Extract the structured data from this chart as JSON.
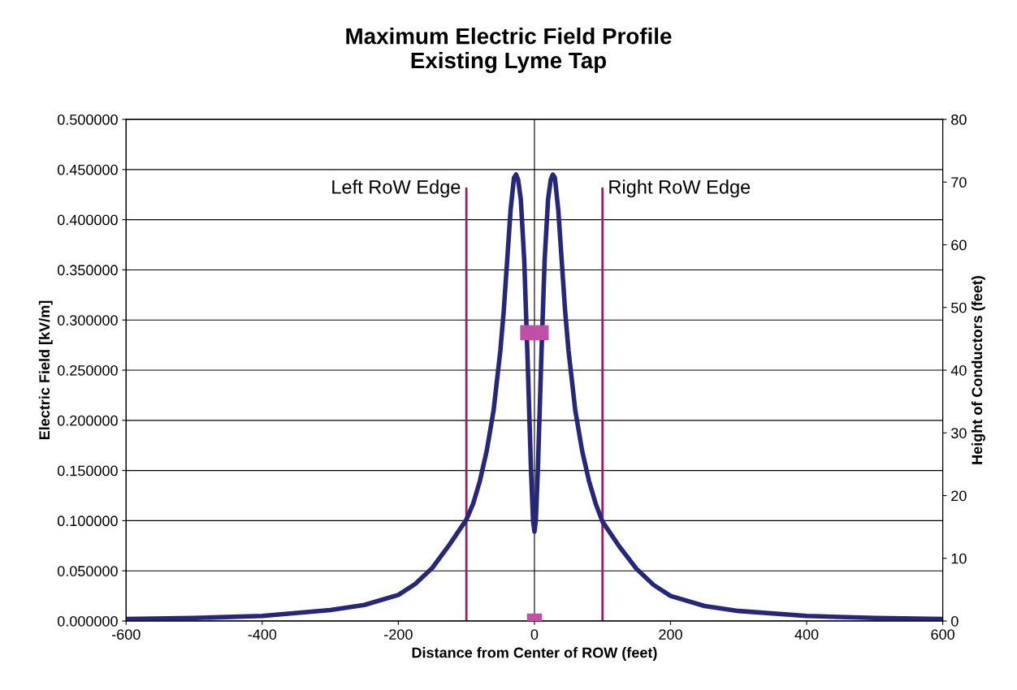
{
  "chart_data": {
    "type": "line",
    "title": "Maximum Electric Field Profile\nExisting Lyme Tap",
    "xlabel": "Distance from Center of ROW (feet)",
    "ylabel": "Electric Field [kV/m]",
    "y2label": "Height of Conductors (feet)",
    "series": [
      {
        "color": "#27277a",
        "x": [
          -600,
          -500,
          -400,
          -300,
          -250,
          -200,
          -175,
          -150,
          -125,
          -100,
          -90,
          -80,
          -70,
          -60,
          -50,
          -45,
          -40,
          -35,
          -30,
          -27,
          -24,
          -20,
          -15,
          -10,
          -5,
          -2,
          0,
          2,
          5,
          10,
          15,
          20,
          24,
          27,
          30,
          35,
          40,
          45,
          50,
          60,
          70,
          80,
          90,
          100,
          125,
          150,
          175,
          200,
          250,
          300,
          400,
          500,
          600
        ],
        "values": [
          0.002,
          0.003,
          0.005,
          0.011,
          0.016,
          0.026,
          0.037,
          0.053,
          0.076,
          0.101,
          0.117,
          0.14,
          0.17,
          0.21,
          0.27,
          0.31,
          0.36,
          0.41,
          0.442,
          0.445,
          0.44,
          0.42,
          0.36,
          0.26,
          0.15,
          0.1,
          0.089,
          0.1,
          0.15,
          0.26,
          0.36,
          0.42,
          0.44,
          0.445,
          0.442,
          0.41,
          0.36,
          0.31,
          0.27,
          0.21,
          0.17,
          0.14,
          0.117,
          0.099,
          0.074,
          0.052,
          0.036,
          0.025,
          0.015,
          0.01,
          0.005,
          0.003,
          0.002
        ]
      },
      {
        "type": "scatter",
        "axis": "y2",
        "marker": "square",
        "color": "#c04fa6",
        "x": [
          -10,
          10,
          0
        ],
        "values": [
          46,
          46,
          0
        ]
      }
    ],
    "xlim": [
      -600,
      600
    ],
    "xticks": [
      -600,
      -400,
      -200,
      0,
      200,
      400,
      600
    ],
    "ylim": [
      0,
      0.5
    ],
    "yticks": [
      {
        "value": 0,
        "label": "0.000000"
      },
      {
        "value": 0.05,
        "label": "0.050000"
      },
      {
        "value": 0.1,
        "label": "0.100000"
      },
      {
        "value": 0.15,
        "label": "0.150000"
      },
      {
        "value": 0.2,
        "label": "0.200000"
      },
      {
        "value": 0.25,
        "label": "0.250000"
      },
      {
        "value": 0.3,
        "label": "0.300000"
      },
      {
        "value": 0.35,
        "label": "0.350000"
      },
      {
        "value": 0.4,
        "label": "0.400000"
      },
      {
        "value": 0.45,
        "label": "0.450000"
      },
      {
        "value": 0.5,
        "label": "0.500000"
      }
    ],
    "y2lim": [
      0,
      80
    ],
    "y2ticks": [
      0,
      10,
      20,
      30,
      40,
      50,
      60,
      70,
      80
    ],
    "ref_lines": [
      {
        "axis": "x",
        "value": -100,
        "label": "Left RoW Edge",
        "color": "#9b1f5f"
      },
      {
        "axis": "x",
        "value": 100,
        "label": "Right RoW Edge",
        "color": "#9b1f5f"
      },
      {
        "axis": "x",
        "value": 0,
        "color": "#000000"
      }
    ],
    "grid": "y"
  }
}
